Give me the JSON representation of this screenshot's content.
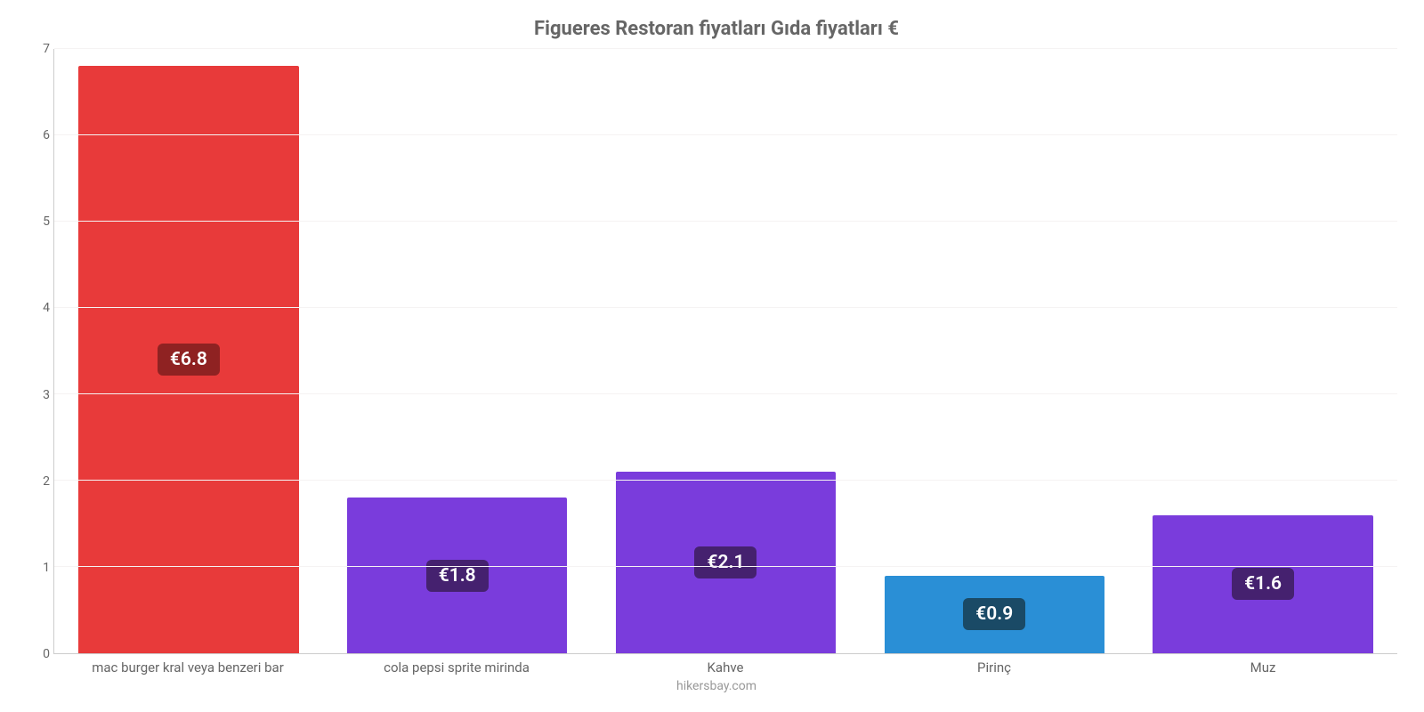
{
  "chart": {
    "type": "bar",
    "title": "Figueres Restoran fiyatları Gıda fiyatları €",
    "title_fontsize": 22,
    "title_color": "#666666",
    "background_color": "#ffffff",
    "grid_color": "#f5f3f3",
    "axis_color": "#cccccc",
    "tick_color": "#666666",
    "tick_fontsize": 14,
    "xlabel_fontsize": 15,
    "ylim_min": 0,
    "ylim_max": 7,
    "ytick_step": 1,
    "yticks": [
      "0",
      "1",
      "2",
      "3",
      "4",
      "5",
      "6",
      "7"
    ],
    "bar_width_pct": 82,
    "value_label_fontsize": 21,
    "value_label_radius": 6,
    "categories": [
      "mac burger kral veya benzeri bar",
      "cola pepsi sprite mirinda",
      "Kahve",
      "Pirinç",
      "Muz"
    ],
    "values": [
      6.8,
      1.8,
      2.1,
      0.9,
      1.6
    ],
    "value_labels": [
      "€6.8",
      "€1.8",
      "€2.1",
      "€0.9",
      "€1.6"
    ],
    "bar_colors": [
      "#e83a3a",
      "#7a3cdc",
      "#7a3cdc",
      "#2a8fd6",
      "#7a3cdc"
    ],
    "label_bg_colors": [
      "#8f2222",
      "#45216f",
      "#45216f",
      "#1a4a66",
      "#45216f"
    ],
    "footer": "hikersbay.com",
    "footer_color": "#999999",
    "footer_fontsize": 14
  }
}
